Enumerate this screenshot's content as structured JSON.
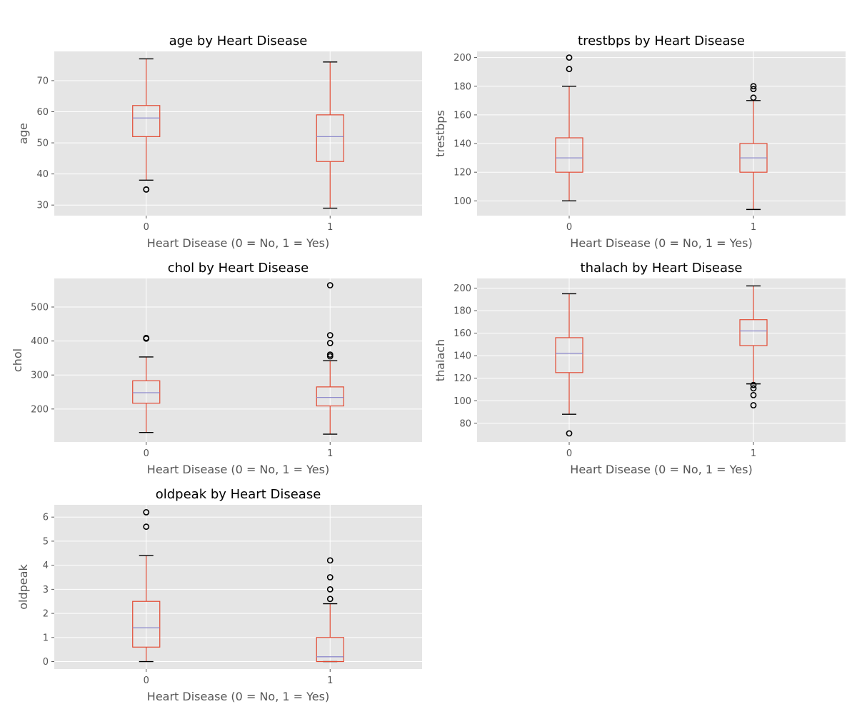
{
  "chart_data": [
    {
      "type": "box",
      "title": "age by Heart Disease",
      "xlabel": "Heart Disease (0 = No, 1 = Yes)",
      "ylabel": "age",
      "categories": [
        "0",
        "1"
      ],
      "ylim": [
        26.6,
        79.4
      ],
      "yticks": [
        30,
        40,
        50,
        60,
        70
      ],
      "boxes": [
        {
          "whislo": 38,
          "q1": 52,
          "med": 58,
          "q3": 62,
          "whishi": 77,
          "fliers": [
            35,
            35
          ]
        },
        {
          "whislo": 29,
          "q1": 44,
          "med": 52,
          "q3": 59,
          "whishi": 76,
          "fliers": []
        }
      ],
      "grid": true
    },
    {
      "type": "box",
      "title": "trestbps by Heart Disease",
      "xlabel": "Heart Disease (0 = No, 1 = Yes)",
      "ylabel": "trestbps",
      "categories": [
        "0",
        "1"
      ],
      "ylim": [
        89.7,
        204.3
      ],
      "yticks": [
        100,
        120,
        140,
        160,
        180,
        200
      ],
      "boxes": [
        {
          "whislo": 100,
          "q1": 120,
          "med": 130,
          "q3": 144,
          "whishi": 180,
          "fliers": [
            192,
            200
          ]
        },
        {
          "whislo": 94,
          "q1": 120,
          "med": 130,
          "q3": 140,
          "whishi": 170,
          "fliers": [
            172,
            178,
            180
          ]
        }
      ],
      "grid": true
    },
    {
      "type": "box",
      "title": "chol by Heart Disease",
      "xlabel": "Heart Disease (0 = No, 1 = Yes)",
      "ylabel": "chol",
      "categories": [
        "0",
        "1"
      ],
      "ylim": [
        103,
        584
      ],
      "yticks": [
        200,
        300,
        400,
        500
      ],
      "boxes": [
        {
          "whislo": 131,
          "q1": 217,
          "med": 248,
          "q3": 283,
          "whishi": 353,
          "fliers": [
            407,
            409
          ]
        },
        {
          "whislo": 126,
          "q1": 209,
          "med": 234,
          "q3": 265,
          "whishi": 342,
          "fliers": [
            355,
            360,
            394,
            417,
            564
          ]
        }
      ],
      "grid": true
    },
    {
      "type": "box",
      "title": "thalach by Heart Disease",
      "xlabel": "Heart Disease (0 = No, 1 = Yes)",
      "ylabel": "thalach",
      "categories": [
        "0",
        "1"
      ],
      "ylim": [
        63.4,
        208.6
      ],
      "yticks": [
        80,
        100,
        120,
        140,
        160,
        180,
        200
      ],
      "boxes": [
        {
          "whislo": 88,
          "q1": 125,
          "med": 142,
          "q3": 156,
          "whishi": 195,
          "fliers": [
            71
          ]
        },
        {
          "whislo": 115,
          "q1": 149,
          "med": 162,
          "q3": 172,
          "whishi": 202,
          "fliers": [
            96,
            105,
            111,
            114
          ]
        }
      ],
      "grid": true
    },
    {
      "type": "box",
      "title": "oldpeak by Heart Disease",
      "xlabel": "Heart Disease (0 = No, 1 = Yes)",
      "ylabel": "oldpeak",
      "categories": [
        "0",
        "1"
      ],
      "ylim": [
        -0.31,
        6.51
      ],
      "yticks": [
        0,
        1,
        2,
        3,
        4,
        5,
        6
      ],
      "boxes": [
        {
          "whislo": 0,
          "q1": 0.6,
          "med": 1.4,
          "q3": 2.5,
          "whishi": 4.4,
          "fliers": [
            5.6,
            6.2
          ]
        },
        {
          "whislo": 0,
          "q1": 0,
          "med": 0.2,
          "q3": 1.0,
          "whishi": 2.4,
          "fliers": [
            2.6,
            3.0,
            3.5,
            4.2
          ]
        }
      ],
      "grid": true
    }
  ],
  "colors": {
    "panel_bg": "#e5e5e5",
    "grid": "#ffffff",
    "box": "#e24a33",
    "median": "#8f8bcc",
    "whisker": "#e24a33",
    "cap": "#000000",
    "flier": "#000000"
  }
}
